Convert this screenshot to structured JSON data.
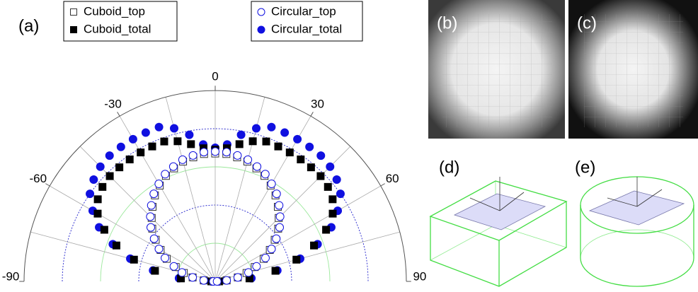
{
  "chart_data": {
    "type": "polar",
    "theta": [
      -90,
      -85,
      -80,
      -75,
      -70,
      -65,
      -60,
      -55,
      -50,
      -45,
      -40,
      -35,
      -30,
      -25,
      -20,
      -15,
      -10,
      -5,
      0,
      5,
      10,
      15,
      20,
      25,
      30,
      35,
      40,
      45,
      50,
      55,
      60,
      65,
      70,
      75,
      80,
      85,
      90
    ],
    "thetaticks": [
      -90,
      -60,
      -30,
      0,
      30,
      60,
      90
    ],
    "thetagrid": [
      -75,
      -60,
      -45,
      -30,
      -15,
      0,
      15,
      30,
      45,
      60,
      75
    ],
    "rlim": [
      0,
      1
    ],
    "rgrid": [
      0.2,
      0.4,
      0.6,
      0.8
    ],
    "series": [
      {
        "name": "Circular_total",
        "color": "#1010e0",
        "marker": "circle",
        "filled": true,
        "values": [
          0.02,
          0.19,
          0.33,
          0.46,
          0.57,
          0.67,
          0.74,
          0.8,
          0.83,
          0.85,
          0.86,
          0.86,
          0.86,
          0.86,
          0.86,
          0.83,
          0.78,
          0.72,
          0.7,
          0.72,
          0.78,
          0.83,
          0.86,
          0.86,
          0.86,
          0.86,
          0.86,
          0.85,
          0.83,
          0.8,
          0.74,
          0.67,
          0.57,
          0.46,
          0.33,
          0.19,
          0.02
        ]
      },
      {
        "name": "Cuboid_total",
        "color": "#000000",
        "marker": "square",
        "filled": true,
        "values": [
          0.02,
          0.18,
          0.32,
          0.44,
          0.55,
          0.64,
          0.71,
          0.75,
          0.77,
          0.78,
          0.78,
          0.78,
          0.78,
          0.78,
          0.78,
          0.76,
          0.73,
          0.7,
          0.69,
          0.7,
          0.73,
          0.76,
          0.78,
          0.78,
          0.78,
          0.78,
          0.78,
          0.78,
          0.77,
          0.75,
          0.71,
          0.64,
          0.55,
          0.44,
          0.32,
          0.18,
          0.02
        ]
      },
      {
        "name": "Cuboid_top",
        "color": "#333333",
        "marker": "square",
        "filled": false,
        "values": [
          0.01,
          0.06,
          0.12,
          0.17,
          0.22,
          0.28,
          0.33,
          0.38,
          0.43,
          0.47,
          0.51,
          0.55,
          0.58,
          0.61,
          0.63,
          0.65,
          0.66,
          0.67,
          0.67,
          0.67,
          0.66,
          0.65,
          0.63,
          0.61,
          0.58,
          0.55,
          0.51,
          0.47,
          0.43,
          0.38,
          0.33,
          0.28,
          0.22,
          0.17,
          0.12,
          0.06,
          0.01
        ]
      },
      {
        "name": "Circular_top",
        "color": "#1010e0",
        "marker": "circle",
        "filled": false,
        "values": [
          0.01,
          0.06,
          0.12,
          0.18,
          0.23,
          0.29,
          0.34,
          0.39,
          0.44,
          0.48,
          0.52,
          0.56,
          0.59,
          0.62,
          0.64,
          0.66,
          0.67,
          0.68,
          0.68,
          0.68,
          0.67,
          0.66,
          0.64,
          0.62,
          0.59,
          0.56,
          0.52,
          0.48,
          0.44,
          0.39,
          0.34,
          0.29,
          0.23,
          0.18,
          0.12,
          0.06,
          0.01
        ]
      }
    ],
    "legend_groups": [
      [
        2,
        1
      ],
      [
        3,
        0
      ]
    ]
  },
  "panel_labels": [
    "(a)",
    "(b)",
    "(c)",
    "(d)",
    "(e)"
  ]
}
